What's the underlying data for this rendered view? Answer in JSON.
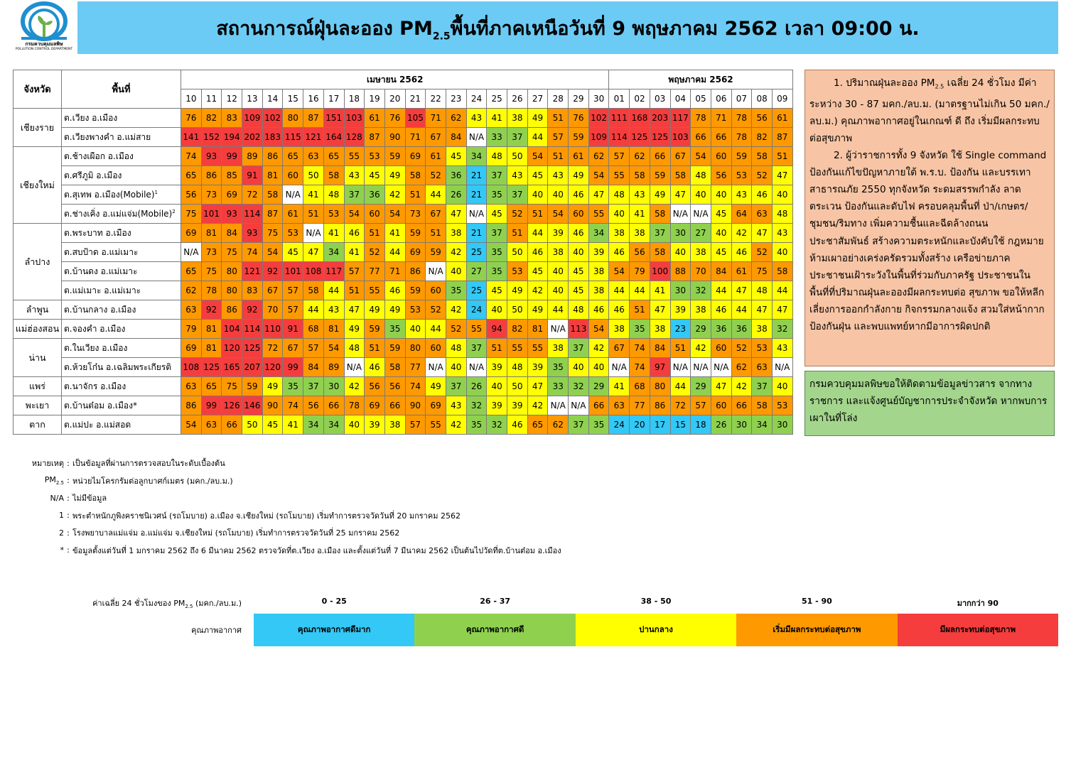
{
  "logo": {
    "name_th": "กรมควบคุมมลพิษ",
    "name_en": "POLLUTION CONTROL DEPARTMENT"
  },
  "title": {
    "prefix": "สถานการณ์ฝุ่นละออง PM",
    "sub": "2.5",
    "suffix": "พื้นที่ภาคเหนือวันที่ 9 พฤษภาคม 2562 เวลา 09:00 น."
  },
  "table": {
    "col_province": "จังหวัด",
    "col_area": "พื้นที่",
    "months": [
      {
        "label": "เมษายน 2562",
        "span": 21
      },
      {
        "label": "พฤษภาคม 2562",
        "span": 9
      }
    ],
    "days": [
      "10",
      "11",
      "12",
      "13",
      "14",
      "15",
      "16",
      "17",
      "18",
      "19",
      "20",
      "21",
      "22",
      "23",
      "24",
      "25",
      "26",
      "27",
      "28",
      "29",
      "30",
      "01",
      "02",
      "03",
      "04",
      "05",
      "06",
      "07",
      "08",
      "09"
    ],
    "groups": [
      {
        "province": "เชียงราย",
        "rows": [
          {
            "area": "ต.เวียง อ.เมือง",
            "sup": "",
            "values": [
              "76",
              "82",
              "83",
              "109",
              "102",
              "80",
              "87",
              "151",
              "103",
              "61",
              "76",
              "105",
              "71",
              "62",
              "43",
              "41",
              "38",
              "49",
              "51",
              "76",
              "102",
              "111",
              "168",
              "203",
              "117",
              "78",
              "71",
              "78",
              "56",
              "61"
            ]
          },
          {
            "area": "ต.เวียงพางคำ อ.แม่สาย",
            "sup": "",
            "values": [
              "141",
              "152",
              "194",
              "202",
              "183",
              "115",
              "121",
              "164",
              "128",
              "87",
              "90",
              "71",
              "67",
              "84",
              "N/A",
              "33",
              "37",
              "44",
              "57",
              "59",
              "109",
              "114",
              "125",
              "125",
              "103",
              "66",
              "66",
              "78",
              "82",
              "87"
            ]
          }
        ]
      },
      {
        "province": "เชียงใหม่",
        "rows": [
          {
            "area": "ต.ช้างเผือก อ.เมือง",
            "sup": "",
            "values": [
              "74",
              "93",
              "99",
              "89",
              "86",
              "65",
              "63",
              "65",
              "55",
              "53",
              "59",
              "69",
              "61",
              "45",
              "34",
              "48",
              "50",
              "54",
              "51",
              "61",
              "62",
              "57",
              "62",
              "66",
              "67",
              "54",
              "60",
              "59",
              "58",
              "51"
            ]
          },
          {
            "area": "ต.ศรีภูมิ อ.เมือง",
            "sup": "",
            "values": [
              "65",
              "86",
              "85",
              "91",
              "81",
              "60",
              "50",
              "58",
              "43",
              "45",
              "49",
              "58",
              "52",
              "36",
              "21",
              "37",
              "43",
              "45",
              "43",
              "49",
              "54",
              "55",
              "58",
              "59",
              "58",
              "48",
              "56",
              "53",
              "52",
              "47"
            ]
          },
          {
            "area": "ต.สุเทพ อ.เมือง(Mobile)",
            "sup": "1",
            "values": [
              "56",
              "73",
              "69",
              "72",
              "58",
              "N/A",
              "41",
              "48",
              "37",
              "36",
              "42",
              "51",
              "44",
              "26",
              "21",
              "35",
              "37",
              "40",
              "40",
              "46",
              "47",
              "48",
              "43",
              "49",
              "47",
              "40",
              "40",
              "43",
              "46",
              "40"
            ]
          },
          {
            "area": "ต.ช่างเคิ่ง อ.แม่แจ่ม(Mobile)",
            "sup": "2",
            "values": [
              "75",
              "101",
              "93",
              "114",
              "87",
              "61",
              "51",
              "53",
              "54",
              "60",
              "54",
              "73",
              "67",
              "47",
              "N/A",
              "45",
              "52",
              "51",
              "54",
              "60",
              "55",
              "40",
              "41",
              "58",
              "N/A",
              "N/A",
              "45",
              "64",
              "63",
              "48"
            ]
          }
        ]
      },
      {
        "province": "ลำปาง",
        "rows": [
          {
            "area": "ต.พระบาท อ.เมือง",
            "sup": "",
            "values": [
              "69",
              "81",
              "84",
              "93",
              "75",
              "53",
              "N/A",
              "41",
              "46",
              "51",
              "41",
              "59",
              "51",
              "38",
              "21",
              "37",
              "51",
              "44",
              "39",
              "46",
              "34",
              "38",
              "38",
              "37",
              "30",
              "27",
              "40",
              "42",
              "47",
              "43"
            ]
          },
          {
            "area": "ต.สบป้าด อ.แม่เมาะ",
            "sup": "",
            "values": [
              "N/A",
              "73",
              "75",
              "74",
              "54",
              "45",
              "47",
              "34",
              "41",
              "52",
              "44",
              "69",
              "59",
              "42",
              "25",
              "35",
              "50",
              "46",
              "38",
              "40",
              "39",
              "46",
              "56",
              "58",
              "40",
              "38",
              "45",
              "46",
              "52",
              "40"
            ]
          },
          {
            "area": "ต.บ้านดง อ.แม่เมาะ",
            "sup": "",
            "values": [
              "65",
              "75",
              "80",
              "121",
              "92",
              "101",
              "108",
              "117",
              "57",
              "77",
              "71",
              "86",
              "N/A",
              "40",
              "27",
              "35",
              "53",
              "45",
              "40",
              "45",
              "38",
              "54",
              "79",
              "100",
              "88",
              "70",
              "84",
              "61",
              "75",
              "58"
            ]
          },
          {
            "area": "ต.แม่เมาะ อ.แม่เมาะ",
            "sup": "",
            "values": [
              "62",
              "78",
              "80",
              "83",
              "67",
              "57",
              "58",
              "44",
              "51",
              "55",
              "46",
              "59",
              "60",
              "35",
              "25",
              "45",
              "49",
              "42",
              "40",
              "45",
              "38",
              "44",
              "44",
              "41",
              "30",
              "32",
              "44",
              "47",
              "48",
              "44"
            ]
          }
        ]
      },
      {
        "province": "ลำพูน",
        "rows": [
          {
            "area": "ต.บ้านกลาง อ.เมือง",
            "sup": "",
            "values": [
              "63",
              "92",
              "86",
              "92",
              "70",
              "57",
              "44",
              "43",
              "47",
              "49",
              "49",
              "53",
              "52",
              "42",
              "24",
              "40",
              "50",
              "49",
              "44",
              "48",
              "46",
              "46",
              "51",
              "47",
              "39",
              "38",
              "46",
              "44",
              "47",
              "47"
            ]
          }
        ]
      },
      {
        "province": "แม่ฮ่องสอน",
        "rows": [
          {
            "area": "ต.จองคำ อ.เมือง",
            "sup": "",
            "values": [
              "79",
              "81",
              "104",
              "114",
              "110",
              "91",
              "68",
              "81",
              "49",
              "59",
              "35",
              "40",
              "44",
              "52",
              "55",
              "94",
              "82",
              "81",
              "N/A",
              "113",
              "54",
              "38",
              "35",
              "38",
              "23",
              "29",
              "36",
              "36",
              "38",
              "32"
            ]
          }
        ]
      },
      {
        "province": "น่าน",
        "rows": [
          {
            "area": "ต.ในเวียง อ.เมือง",
            "sup": "",
            "values": [
              "69",
              "81",
              "120",
              "125",
              "72",
              "67",
              "57",
              "54",
              "48",
              "51",
              "59",
              "80",
              "60",
              "48",
              "37",
              "51",
              "55",
              "55",
              "38",
              "37",
              "42",
              "67",
              "74",
              "84",
              "51",
              "42",
              "60",
              "52",
              "53",
              "43"
            ]
          },
          {
            "area": "ต.ห้วยโก๋น อ.เฉลิมพระเกียรติ",
            "sup": "",
            "values": [
              "108",
              "125",
              "165",
              "207",
              "120",
              "99",
              "84",
              "89",
              "N/A",
              "46",
              "58",
              "77",
              "N/A",
              "40",
              "N/A",
              "39",
              "48",
              "39",
              "35",
              "40",
              "40",
              "N/A",
              "74",
              "97",
              "N/A",
              "N/A",
              "N/A",
              "62",
              "63",
              "N/A"
            ]
          }
        ]
      },
      {
        "province": "แพร่",
        "rows": [
          {
            "area": "ต.นาจักร อ.เมือง",
            "sup": "",
            "values": [
              "63",
              "65",
              "75",
              "59",
              "49",
              "35",
              "37",
              "30",
              "42",
              "56",
              "56",
              "74",
              "49",
              "37",
              "26",
              "40",
              "50",
              "47",
              "33",
              "32",
              "29",
              "41",
              "68",
              "80",
              "44",
              "29",
              "47",
              "42",
              "37",
              "40"
            ]
          }
        ]
      },
      {
        "province": "พะเยา",
        "rows": [
          {
            "area": "ต.บ้านต๋อม อ.เมือง*",
            "sup": "",
            "values": [
              "86",
              "99",
              "126",
              "146",
              "90",
              "74",
              "56",
              "66",
              "78",
              "69",
              "66",
              "90",
              "69",
              "43",
              "32",
              "39",
              "39",
              "42",
              "N/A",
              "N/A",
              "66",
              "63",
              "77",
              "86",
              "72",
              "57",
              "60",
              "66",
              "58",
              "53"
            ]
          }
        ]
      },
      {
        "province": "ตาก",
        "rows": [
          {
            "area": "ต.แม่ปะ อ.แม่สอด",
            "sup": "",
            "values": [
              "54",
              "63",
              "66",
              "50",
              "45",
              "41",
              "34",
              "34",
              "40",
              "39",
              "38",
              "57",
              "55",
              "42",
              "35",
              "32",
              "46",
              "65",
              "62",
              "37",
              "35",
              "24",
              "20",
              "17",
              "15",
              "18",
              "26",
              "30",
              "34",
              "30"
            ]
          }
        ]
      }
    ]
  },
  "box1": {
    "p1_a": "1. ปริมาณฝุ่นละออง PM",
    "p1_sub": "2.5",
    "p1_b": " เฉลี่ย 24 ชั่วโมง มีค่าระหว่าง 30 - 87 มคก./ลบ.ม. (มาตรฐานไม่เกิน 50 มคก./ลบ.ม.) คุณภาพอากาศอยู่ในเกณฑ์ ดี ถึง เริ่มมีผลกระทบต่อสุขภาพ",
    "p2": "2. ผู้ว่าราชการทั้ง 9 จังหวัด ใช้ Single command ป้องกันแก้ไขปัญหาภายใต้ พ.ร.บ. ป้องกัน และบรรเทาสาธารณภัย 2550 ทุกจังหวัด ระดมสรรพกำลัง ลาดตระเวน ป้องกันและดับไฟ ครอบคลุมพื้นที่ ป่า/เกษตร/ชุมชน/ริมทาง เพิ่มความชื้นและฉีดล้างถนน ประชาสัมพันธ์ สร้างความตระหนักและบังคับใช้ กฎหมายห้ามเผาอย่างเคร่งครัดรวมทั้งสร้าง เครือข่ายภาคประชาชนเฝ้าระวังในพื้นที่ร่วมกับภาครัฐ ประชาชนในพื้นที่ที่ปริมาณฝุ่นละอองมีผลกระทบต่อ สุขภาพ ขอให้หลีกเลี่ยงการออกกำลังกาย กิจกรรมกลางแจ้ง สวมใส่หน้ากากป้องกันฝุ่น และพบแพทย์หากมีอาการผิดปกติ"
  },
  "box2": {
    "text": "กรมควบคุมมลพิษขอให้ติดตามข้อมูลข่าวสาร จากทางราชการ และแจ้งศูนย์บัญชาการประจำจังหวัด หากพบการเผาในที่โล่ง"
  },
  "notes": {
    "r1_key": "หมายเหตุ",
    "r1_text": "เป็นข้อมูลที่ผ่านการตรวจสอบในระดับเบื้องต้น",
    "r2_key": "PM",
    "r2_sub": "2.5",
    "r2_text": "หน่วยไมโครกรัมต่อลูกบาศก์เมตร (มคก./ลบ.ม.)",
    "r3_key": "N/A",
    "r3_text": "ไม่มีข้อมูล",
    "r4_key": "1",
    "r4_text": "พระตำหนักภูพิงคราชนิเวศน์ (รถโมบาย) อ.เมือง จ.เชียงใหม่ (รถโมบาย) เริ่มทำการตรวจวัดวันที่ 20 มกราคม 2562",
    "r5_key": "2",
    "r5_text": "โรงพยาบาลแม่แจ่ม อ.แม่แจ่ม จ.เชียงใหม่ (รถโมบาย) เริ่มทำการตรวจวัดวันที่ 25 มกราคม 2562",
    "r6_key": "*",
    "r6_text": "ข้อมูลตั้งแต่วันที่ 1 มกราคม 2562 ถึง 6 มีนาคม 2562 ตรวจวัดที่ต.เวียง อ.เมือง และตั้งแต่วันที่ 7 มีนาคม 2562 เป็นต้นไปวัดที่ต.บ้านต๋อม อ.เมือง"
  },
  "legend": {
    "avg_label": "ค่าเฉลี่ย 24 ชั่วโมงของ PM",
    "avg_sub": "2.5",
    "avg_unit": " (มคก./ลบ.ม.)",
    "quality_label": "คุณภาพอากาศ",
    "levels": [
      {
        "range": "0 - 25",
        "label": "คุณภาพอากาศดีมาก",
        "color": "#33c8f5"
      },
      {
        "range": "26 - 37",
        "label": "คุณภาพอากาศดี",
        "color": "#8fd14f"
      },
      {
        "range": "38 - 50",
        "label": "ปานกลาง",
        "color": "#ffff00"
      },
      {
        "range": "51 - 90",
        "label": "เริ่มมีผลกระทบต่อสุขภาพ",
        "color": "#ff9900"
      },
      {
        "range": "มากกว่า 90",
        "label": "มีผลกระทบต่อสุขภาพ",
        "color": "#f53d3d"
      }
    ]
  }
}
